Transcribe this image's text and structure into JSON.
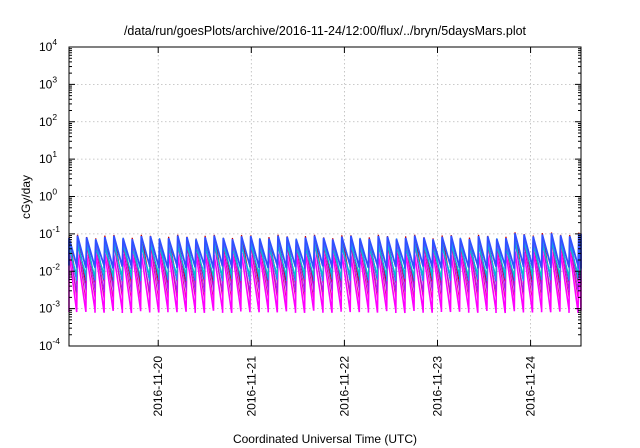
{
  "chart_data": {
    "type": "line",
    "title": "/data/run/goesPlots/archive/2016-11-24/12:00/flux/../bryn/5daysMars.plot",
    "xlabel": "Coordinated Universal Time (UTC)",
    "ylabel": "cGy/day",
    "yscale": "log",
    "ylim": [
      0.0001,
      10000
    ],
    "xlim": [
      "2016-11-19T01:00",
      "2016-11-24T13:00"
    ],
    "grid": true,
    "legend": "none",
    "y_ticks": [
      {
        "value": 0.0001,
        "base": "10",
        "exp": "-4"
      },
      {
        "value": 0.001,
        "base": "10",
        "exp": "-3"
      },
      {
        "value": 0.01,
        "base": "10",
        "exp": "-2"
      },
      {
        "value": 0.1,
        "base": "10",
        "exp": "-1"
      },
      {
        "value": 1,
        "base": "10",
        "exp": "0"
      },
      {
        "value": 10,
        "base": "10",
        "exp": "1"
      },
      {
        "value": 100,
        "base": "10",
        "exp": "2"
      },
      {
        "value": 1000,
        "base": "10",
        "exp": "3"
      },
      {
        "value": 10000,
        "base": "10",
        "exp": "4"
      }
    ],
    "x_ticks": [
      "2016-11-20",
      "2016-11-21",
      "2016-11-22",
      "2016-11-23",
      "2016-11-24"
    ],
    "cycle_hours": 2.35,
    "series": [
      {
        "color": "#cc0000",
        "peak": 0.085,
        "trough": 0.0048,
        "width": 1.2
      },
      {
        "color": "#e8009a",
        "peak": 0.055,
        "trough": 0.0018,
        "width": 1.0
      },
      {
        "color": "#ff00ff",
        "peak": 0.03,
        "trough": 0.00085,
        "width": 1.6
      },
      {
        "color": "#a020f0",
        "peak": 0.065,
        "trough": 0.003,
        "width": 1.0
      },
      {
        "color": "#1e90ff",
        "peak": 0.07,
        "trough": 0.006,
        "width": 1.2
      },
      {
        "color": "#00c8c8",
        "peak": 0.045,
        "trough": 0.008,
        "width": 1.0
      },
      {
        "color": "#3050ff",
        "peak": 0.08,
        "trough": 0.013,
        "width": 1.8
      }
    ]
  }
}
